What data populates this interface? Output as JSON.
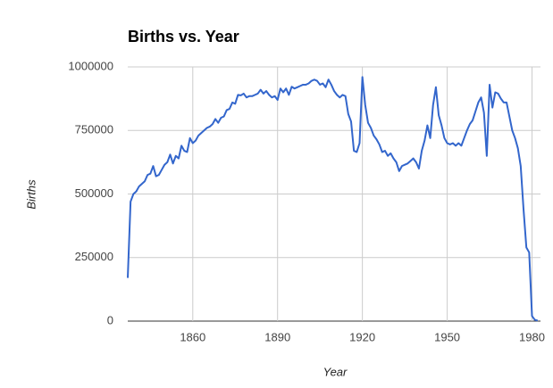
{
  "chart_data": {
    "type": "line",
    "title": "Births vs. Year",
    "x_label": "Year",
    "y_label": "Births",
    "color": "#3366cc",
    "grid": true,
    "xlim": [
      1837,
      1983
    ],
    "xticks": [
      1860,
      1890,
      1920,
      1950,
      1980
    ],
    "ylim": [
      0,
      1000000
    ],
    "yticks": [
      0,
      250000,
      500000,
      750000,
      1000000
    ],
    "x": [
      1837,
      1838,
      1839,
      1840,
      1841,
      1842,
      1843,
      1844,
      1845,
      1846,
      1847,
      1848,
      1849,
      1850,
      1851,
      1852,
      1853,
      1854,
      1855,
      1856,
      1857,
      1858,
      1859,
      1860,
      1861,
      1862,
      1863,
      1864,
      1865,
      1866,
      1867,
      1868,
      1869,
      1870,
      1871,
      1872,
      1873,
      1874,
      1875,
      1876,
      1877,
      1878,
      1879,
      1880,
      1881,
      1882,
      1883,
      1884,
      1885,
      1886,
      1887,
      1888,
      1889,
      1890,
      1891,
      1892,
      1893,
      1894,
      1895,
      1896,
      1897,
      1898,
      1899,
      1900,
      1901,
      1902,
      1903,
      1904,
      1905,
      1906,
      1907,
      1908,
      1909,
      1910,
      1911,
      1912,
      1913,
      1914,
      1915,
      1916,
      1917,
      1918,
      1919,
      1920,
      1921,
      1922,
      1923,
      1924,
      1925,
      1926,
      1927,
      1928,
      1929,
      1930,
      1931,
      1932,
      1933,
      1934,
      1935,
      1936,
      1937,
      1938,
      1939,
      1940,
      1941,
      1942,
      1943,
      1944,
      1945,
      1946,
      1947,
      1948,
      1949,
      1950,
      1951,
      1952,
      1953,
      1954,
      1955,
      1956,
      1957,
      1958,
      1959,
      1960,
      1961,
      1962,
      1963,
      1964,
      1965,
      1966,
      1967,
      1968,
      1969,
      1970,
      1971,
      1972,
      1973,
      1974,
      1975,
      1976,
      1977,
      1978,
      1979,
      1980,
      1981,
      1982
    ],
    "values": [
      170000,
      470000,
      500000,
      510000,
      530000,
      540000,
      550000,
      575000,
      580000,
      610000,
      570000,
      575000,
      595000,
      615000,
      625000,
      655000,
      620000,
      650000,
      640000,
      690000,
      670000,
      665000,
      720000,
      700000,
      710000,
      730000,
      740000,
      750000,
      760000,
      765000,
      775000,
      795000,
      780000,
      800000,
      805000,
      830000,
      835000,
      860000,
      855000,
      890000,
      888000,
      895000,
      880000,
      885000,
      885000,
      890000,
      895000,
      910000,
      895000,
      905000,
      890000,
      880000,
      885000,
      870000,
      915000,
      900000,
      915000,
      890000,
      922000,
      915000,
      920000,
      925000,
      930000,
      930000,
      935000,
      945000,
      950000,
      945000,
      930000,
      935000,
      920000,
      950000,
      930000,
      905000,
      890000,
      880000,
      890000,
      885000,
      815000,
      785000,
      670000,
      665000,
      700000,
      960000,
      850000,
      780000,
      760000,
      730000,
      715000,
      695000,
      665000,
      670000,
      650000,
      660000,
      640000,
      625000,
      590000,
      610000,
      615000,
      620000,
      630000,
      640000,
      625000,
      600000,
      670000,
      710000,
      770000,
      720000,
      850000,
      920000,
      810000,
      770000,
      720000,
      700000,
      695000,
      700000,
      690000,
      700000,
      690000,
      720000,
      750000,
      775000,
      790000,
      825000,
      860000,
      880000,
      820000,
      650000,
      930000,
      840000,
      900000,
      895000,
      875000,
      860000,
      860000,
      805000,
      750000,
      720000,
      680000,
      610000,
      440000,
      290000,
      270000,
      20000,
      5000,
      2000
    ]
  }
}
